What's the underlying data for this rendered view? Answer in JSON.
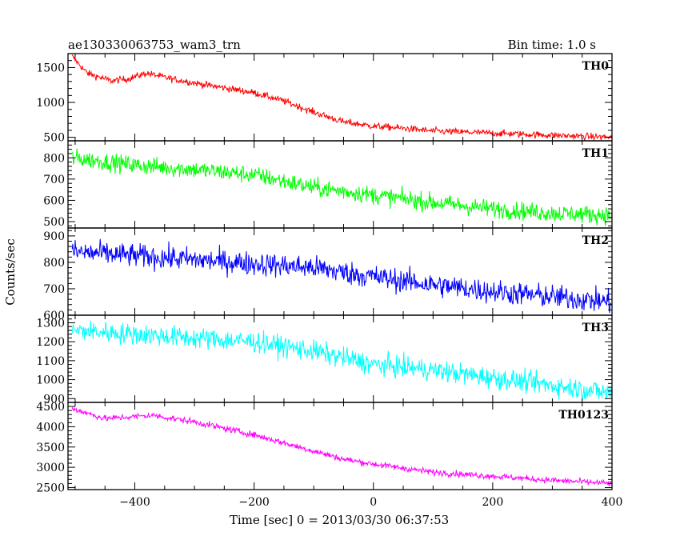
{
  "header": {
    "title": "ae130330063753_wam3_trn",
    "bin_time": "Bin time: 1.0 s"
  },
  "chart_data": {
    "type": "line",
    "title": "ae130330063753_wam3_trn",
    "subtitle": "Bin time: 1.0 s",
    "xlabel": "Time [sec] 0 = 2013/03/30 06:37:53",
    "ylabel": "Counts/sec",
    "xlim": [
      -512,
      400
    ],
    "xticks": [
      -400,
      -200,
      0,
      200,
      400
    ],
    "xtick_labels": [
      "−400",
      "−200",
      "0",
      "200",
      "400"
    ],
    "grid": false,
    "panels": [
      {
        "name": "TH0",
        "color": "#ff0000",
        "ylim": [
          450,
          1700
        ],
        "yticks": [
          500,
          1000,
          1500
        ],
        "trend": [
          [
            -505,
            1660
          ],
          [
            -480,
            1420
          ],
          [
            -440,
            1310
          ],
          [
            -410,
            1340
          ],
          [
            -380,
            1420
          ],
          [
            -340,
            1340
          ],
          [
            -280,
            1250
          ],
          [
            -200,
            1140
          ],
          [
            -150,
            1020
          ],
          [
            -100,
            860
          ],
          [
            -50,
            720
          ],
          [
            0,
            660
          ],
          [
            50,
            630
          ],
          [
            100,
            590
          ],
          [
            200,
            560
          ],
          [
            300,
            530
          ],
          [
            400,
            500
          ]
        ],
        "noise": 35
      },
      {
        "name": "TH1",
        "color": "#00ff00",
        "ylim": [
          470,
          880
        ],
        "yticks": [
          500,
          600,
          700,
          800
        ],
        "trend": [
          [
            -505,
            800
          ],
          [
            -400,
            765
          ],
          [
            -300,
            745
          ],
          [
            -200,
            720
          ],
          [
            -100,
            660
          ],
          [
            0,
            625
          ],
          [
            100,
            590
          ],
          [
            200,
            560
          ],
          [
            300,
            540
          ],
          [
            400,
            530
          ]
        ],
        "noise": 30
      },
      {
        "name": "TH2",
        "color": "#0000ff",
        "ylim": [
          600,
          930
        ],
        "yticks": [
          600,
          700,
          800,
          900
        ],
        "trend": [
          [
            -505,
            840
          ],
          [
            -400,
            825
          ],
          [
            -300,
            810
          ],
          [
            -200,
            795
          ],
          [
            -100,
            780
          ],
          [
            0,
            745
          ],
          [
            100,
            715
          ],
          [
            200,
            690
          ],
          [
            300,
            670
          ],
          [
            400,
            650
          ]
        ],
        "noise": 32
      },
      {
        "name": "TH3",
        "color": "#00ffff",
        "ylim": [
          880,
          1340
        ],
        "yticks": [
          900,
          1000,
          1100,
          1200,
          1300
        ],
        "trend": [
          [
            -505,
            1260
          ],
          [
            -400,
            1240
          ],
          [
            -300,
            1220
          ],
          [
            -200,
            1200
          ],
          [
            -100,
            1150
          ],
          [
            0,
            1080
          ],
          [
            100,
            1050
          ],
          [
            200,
            1010
          ],
          [
            300,
            970
          ],
          [
            400,
            930
          ]
        ],
        "noise": 40
      },
      {
        "name": "TH0123",
        "color": "#ff00ff",
        "ylim": [
          2450,
          4600
        ],
        "yticks": [
          2500,
          3000,
          3500,
          4000,
          4500
        ],
        "trend": [
          [
            -505,
            4450
          ],
          [
            -450,
            4200
          ],
          [
            -400,
            4250
          ],
          [
            -370,
            4280
          ],
          [
            -300,
            4120
          ],
          [
            -200,
            3800
          ],
          [
            -150,
            3600
          ],
          [
            -100,
            3400
          ],
          [
            -50,
            3200
          ],
          [
            0,
            3080
          ],
          [
            50,
            2980
          ],
          [
            100,
            2880
          ],
          [
            200,
            2780
          ],
          [
            300,
            2680
          ],
          [
            400,
            2600
          ]
        ],
        "noise": 55
      }
    ]
  }
}
